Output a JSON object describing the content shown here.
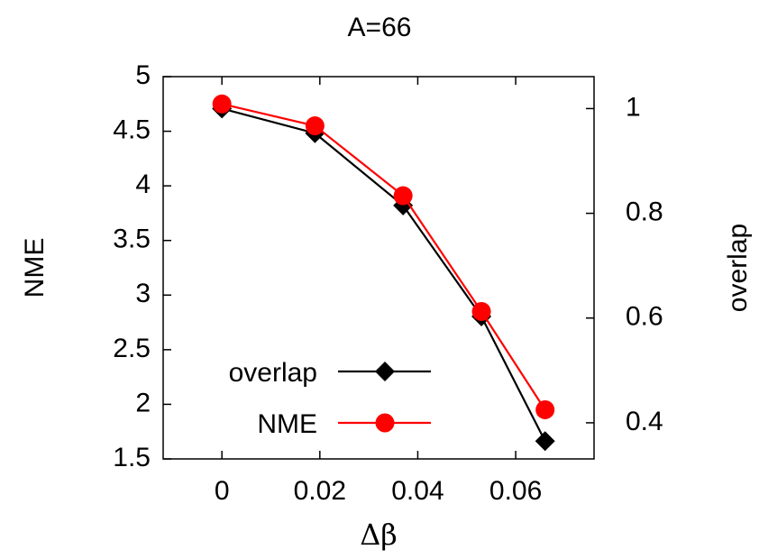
{
  "chart_data": {
    "type": "line",
    "title": "A=66",
    "xlabel": "Δβ",
    "ylabel": "NME",
    "y2label": "overlap",
    "xlim": [
      -0.012,
      0.076
    ],
    "ylim": [
      1.5,
      5
    ],
    "y2lim": [
      0.331,
      1.061
    ],
    "x_ticks": [
      0,
      0.02,
      0.04,
      0.06
    ],
    "x_tick_labels": [
      "0",
      "0.02",
      "0.04",
      "0.06"
    ],
    "y_ticks": [
      1.5,
      2,
      2.5,
      3,
      3.5,
      4,
      4.5,
      5
    ],
    "y_tick_labels": [
      "1.5",
      "2",
      "2.5",
      "3",
      "3.5",
      "4",
      "4.5",
      "5"
    ],
    "y2_ticks": [
      0.4,
      0.6,
      0.8,
      1
    ],
    "y2_tick_labels": [
      "0.4",
      "0.6",
      "0.8",
      "1"
    ],
    "grid": false,
    "legend_position": "bottom-left",
    "series": [
      {
        "name": "overlap",
        "axis": "right",
        "color": "#000000",
        "marker": "diamond",
        "x": [
          0,
          0.019,
          0.037,
          0.053,
          0.066
        ],
        "values": [
          1.0,
          0.953,
          0.815,
          0.603,
          0.365
        ]
      },
      {
        "name": "NME",
        "axis": "left",
        "color": "#ff0000",
        "marker": "circle",
        "x": [
          0,
          0.019,
          0.037,
          0.053,
          0.066
        ],
        "values": [
          4.75,
          4.55,
          3.91,
          2.85,
          1.95
        ]
      }
    ]
  }
}
